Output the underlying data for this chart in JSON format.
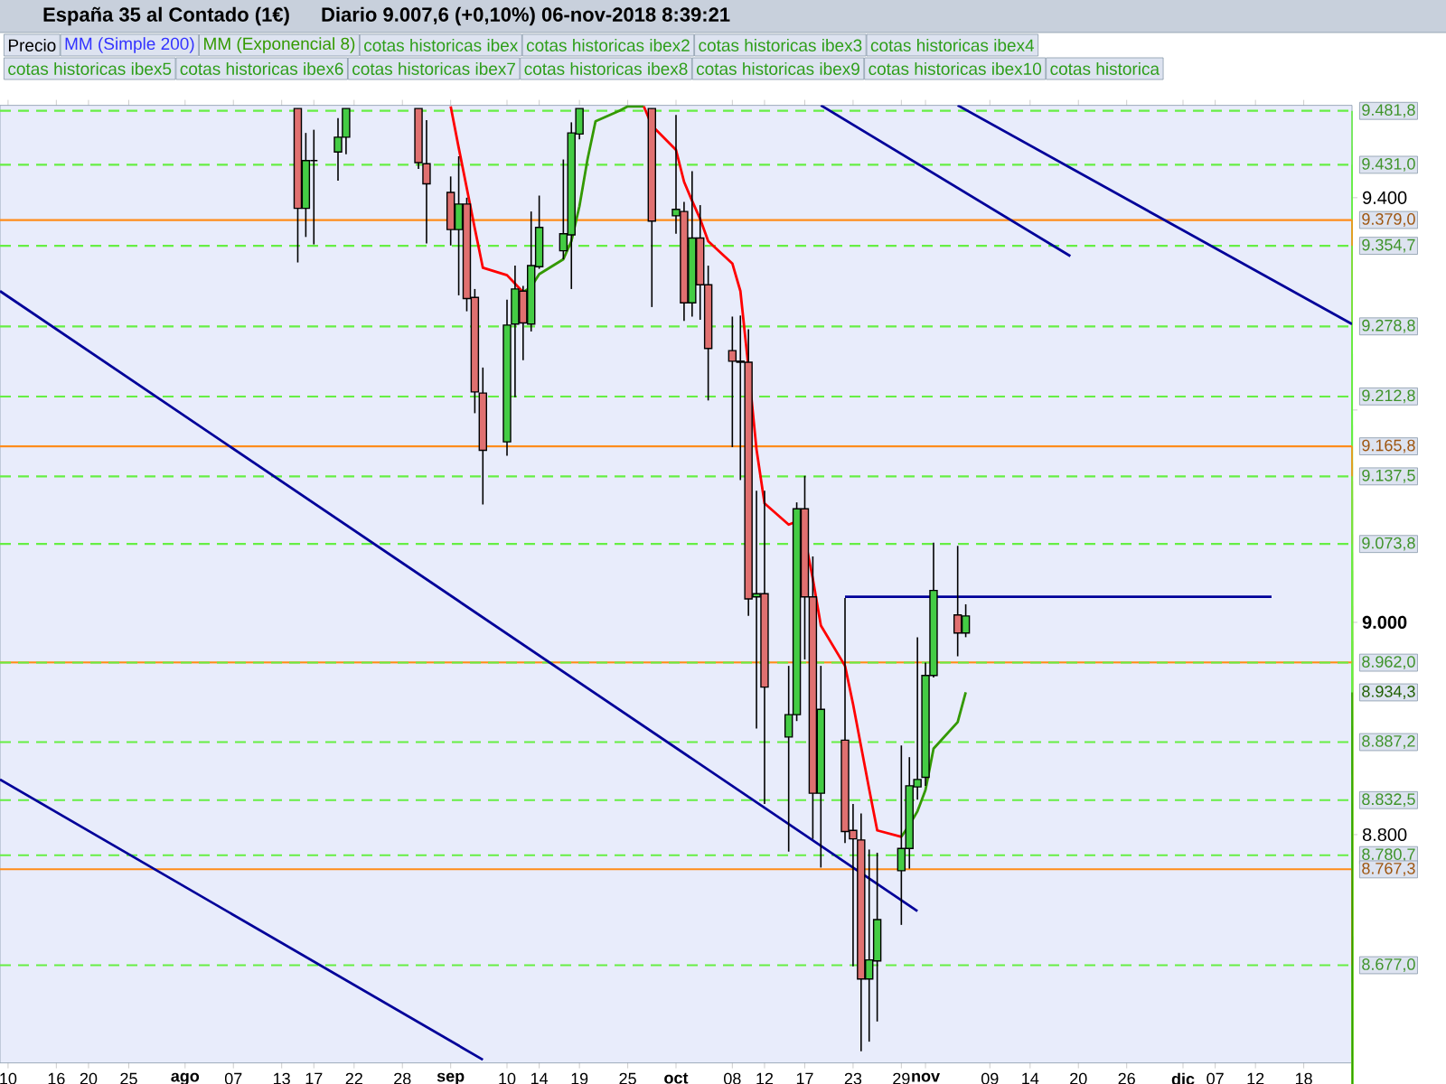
{
  "chart_data": {
    "type": "candlestick",
    "title": "España 35 al Contado (1€)",
    "subtitle": "Diario   9.007,6 (+0,10%)   06-nov-2018 8:39:21",
    "x": [
      "2018-08-15",
      "2018-08-16",
      "2018-08-17",
      "2018-08-20",
      "2018-08-21",
      "2018-08-30",
      "2018-08-31",
      "2018-09-03",
      "2018-09-04",
      "2018-09-05",
      "2018-09-06",
      "2018-09-07",
      "2018-09-10",
      "2018-09-11",
      "2018-09-12",
      "2018-09-13",
      "2018-09-14",
      "2018-09-17",
      "2018-09-18",
      "2018-09-19",
      "2018-09-28",
      "2018-10-01",
      "2018-10-02",
      "2018-10-03",
      "2018-10-04",
      "2018-10-05",
      "2018-10-08",
      "2018-10-09",
      "2018-10-10",
      "2018-10-11",
      "2018-10-12",
      "2018-10-15",
      "2018-10-16",
      "2018-10-17",
      "2018-10-18",
      "2018-10-19",
      "2018-10-22",
      "2018-10-23",
      "2018-10-24",
      "2018-10-25",
      "2018-10-26",
      "2018-10-29",
      "2018-10-30",
      "2018-10-31",
      "2018-11-01",
      "2018-11-02",
      "2018-11-05",
      "2018-11-06"
    ],
    "ohlc": [
      [
        9484,
        9484,
        9339,
        9390
      ],
      [
        9390,
        9461,
        9363,
        9435
      ],
      [
        9435,
        9464,
        9356,
        9435
      ],
      [
        9443,
        9475,
        9416,
        9457
      ],
      [
        9457,
        9484,
        9441,
        9484
      ],
      [
        9484,
        9484,
        9427,
        9433
      ],
      [
        9432,
        9473,
        9357,
        9413
      ],
      [
        9405,
        9420,
        9355,
        9370
      ],
      [
        9370,
        9439,
        9308,
        9394
      ],
      [
        9394,
        9400,
        9293,
        9305
      ],
      [
        9306,
        9314,
        9197,
        9217
      ],
      [
        9216,
        9240,
        9111,
        9162
      ],
      [
        9170,
        9304,
        9157,
        9280
      ],
      [
        9281,
        9336,
        9212,
        9314
      ],
      [
        9312,
        9317,
        9247,
        9282
      ],
      [
        9281,
        9387,
        9274,
        9336
      ],
      [
        9335,
        9402,
        9333,
        9372
      ],
      [
        9350,
        9436,
        9342,
        9366
      ],
      [
        9365,
        9471,
        9314,
        9461
      ],
      [
        9460,
        9484,
        9455,
        9484
      ],
      [
        9484,
        9484,
        9297,
        9378
      ],
      [
        9383,
        9478,
        9366,
        9389
      ],
      [
        9387,
        9396,
        9284,
        9301
      ],
      [
        9301,
        9425,
        9288,
        9362
      ],
      [
        9362,
        9393,
        9285,
        9318
      ],
      [
        9318,
        9336,
        9209,
        9258
      ],
      [
        9256,
        9288,
        9165,
        9246
      ],
      [
        9246,
        9289,
        9134,
        9245
      ],
      [
        9245,
        9276,
        9006,
        9022
      ],
      [
        9024,
        9124,
        8900,
        9027
      ],
      [
        9027,
        9124,
        8829,
        8939
      ],
      [
        8892,
        8959,
        8784,
        8913
      ],
      [
        8913,
        9113,
        8907,
        9107
      ],
      [
        9107,
        9138,
        8965,
        9024
      ],
      [
        9024,
        9062,
        8796,
        8839
      ],
      [
        8839,
        8959,
        8769,
        8918
      ],
      [
        8889,
        9023,
        8792,
        8803
      ],
      [
        8804,
        8829,
        8676,
        8796
      ],
      [
        8795,
        8820,
        8596,
        8664
      ],
      [
        8664,
        8786,
        8605,
        8682
      ],
      [
        8681,
        8783,
        8624,
        8720
      ],
      [
        8766,
        8884,
        8715,
        8787
      ],
      [
        8787,
        8873,
        8768,
        8846
      ],
      [
        8845,
        8986,
        8833,
        8852
      ],
      [
        8854,
        8962,
        8846,
        8950
      ],
      [
        8950,
        9075,
        8948,
        9030
      ],
      [
        9007,
        9072,
        8968,
        8990
      ],
      [
        8990,
        9017,
        8986,
        9006
      ]
    ],
    "series": [
      {
        "type": "line",
        "color": "#ff0000",
        "x": [
          "2018-09-03",
          "2018-09-04",
          "2018-09-05",
          "2018-09-06",
          "2018-09-07",
          "2018-09-10",
          "2018-09-11",
          "2018-09-12"
        ],
        "values": [
          9486,
          9447,
          9409,
          9371,
          9334,
          9327,
          9319,
          9311
        ]
      },
      {
        "type": "line",
        "color": "#339900",
        "x": [
          "2018-09-12",
          "2018-09-13",
          "2018-09-14",
          "2018-09-17",
          "2018-09-18",
          "2018-09-19",
          "2018-09-20",
          "2018-09-21",
          "2018-09-24",
          "2018-09-25",
          "2018-09-26",
          "2018-09-27"
        ],
        "values": [
          9311,
          9316,
          9328,
          9342,
          9359,
          9392,
          9436,
          9472,
          9482,
          9486,
          9486,
          9486
        ]
      },
      {
        "type": "line",
        "color": "#ff0000",
        "x": [
          "2018-09-27",
          "2018-09-28",
          "2018-10-01",
          "2018-10-02",
          "2018-10-03",
          "2018-10-04",
          "2018-10-05",
          "2018-10-08",
          "2018-10-09",
          "2018-10-10",
          "2018-10-11",
          "2018-10-12",
          "2018-10-15",
          "2018-10-16",
          "2018-10-17",
          "2018-10-18",
          "2018-10-19",
          "2018-10-22",
          "2018-10-23",
          "2018-10-24",
          "2018-10-25",
          "2018-10-26",
          "2018-10-29"
        ],
        "values": [
          9486,
          9468,
          9445,
          9415,
          9397,
          9380,
          9359,
          9338,
          9312,
          9240,
          9163,
          9112,
          9092,
          9095,
          9080,
          9041,
          8997,
          8959,
          8923,
          8883,
          8843,
          8804,
          8798
        ]
      },
      {
        "type": "line",
        "color": "#339900",
        "x": [
          "2018-10-29",
          "2018-10-30",
          "2018-10-31",
          "2018-11-01",
          "2018-11-02",
          "2018-11-05",
          "2018-11-06"
        ],
        "values": [
          8798,
          8809,
          8822,
          8842,
          8881,
          8906,
          8934
        ]
      },
      {
        "type": "line",
        "color": "#000099",
        "x": [
          "2018-07-09",
          "2018-10-31"
        ],
        "values": [
          9312,
          8728
        ]
      },
      {
        "type": "line",
        "color": "#000099",
        "x": [
          "2018-07-09",
          "2018-09-07"
        ],
        "values": [
          8852,
          8588
        ]
      },
      {
        "type": "line",
        "color": "#000099",
        "x": [
          "2018-10-19",
          "2018-11-19"
        ],
        "values": [
          9487,
          9345
        ]
      },
      {
        "type": "line",
        "color": "#000099",
        "x": [
          "2018-11-05",
          "2018-12-24"
        ],
        "values": [
          9487,
          9281
        ]
      },
      {
        "type": "line",
        "color": "#000099",
        "x": [
          "2018-10-22",
          "2018-12-14"
        ],
        "values": [
          9024,
          9024
        ]
      }
    ],
    "xlim": [
      "2018-07-09",
      "2018-12-24"
    ],
    "ylim": [
      8585,
      9487
    ],
    "xticks": [
      {
        "value": "2018-07-10",
        "label": "10"
      },
      {
        "value": "2018-07-16",
        "label": "16"
      },
      {
        "value": "2018-07-20",
        "label": "20"
      },
      {
        "value": "2018-07-25",
        "label": "25"
      },
      {
        "value": "2018-08-01",
        "label": "ago"
      },
      {
        "value": "2018-08-07",
        "label": "07"
      },
      {
        "value": "2018-08-13",
        "label": "13"
      },
      {
        "value": "2018-08-17",
        "label": "17"
      },
      {
        "value": "2018-08-22",
        "label": "22"
      },
      {
        "value": "2018-08-28",
        "label": "28"
      },
      {
        "value": "2018-09-03",
        "label": "sep"
      },
      {
        "value": "2018-09-10",
        "label": "10"
      },
      {
        "value": "2018-09-14",
        "label": "14"
      },
      {
        "value": "2018-09-19",
        "label": "19"
      },
      {
        "value": "2018-09-25",
        "label": "25"
      },
      {
        "value": "2018-10-01",
        "label": "oct"
      },
      {
        "value": "2018-10-08",
        "label": "08"
      },
      {
        "value": "2018-10-12",
        "label": "12"
      },
      {
        "value": "2018-10-17",
        "label": "17"
      },
      {
        "value": "2018-10-23",
        "label": "23"
      },
      {
        "value": "2018-10-29",
        "label": "29"
      },
      {
        "value": "2018-11-01",
        "label": "nov"
      },
      {
        "value": "2018-11-09",
        "label": "09"
      },
      {
        "value": "2018-11-14",
        "label": "14"
      },
      {
        "value": "2018-11-20",
        "label": "20"
      },
      {
        "value": "2018-11-26",
        "label": "26"
      },
      {
        "value": "2018-12-03",
        "label": "dic"
      },
      {
        "value": "2018-12-07",
        "label": "07"
      },
      {
        "value": "2018-12-12",
        "label": "12"
      },
      {
        "value": "2018-12-18",
        "label": "18"
      }
    ],
    "yticks": [
      {
        "value": 9400,
        "label": "9.400"
      },
      {
        "value": 9200,
        "label": null
      },
      {
        "value": 9000,
        "label": "9.000"
      },
      {
        "value": 8800,
        "label": "8.800"
      }
    ],
    "ref_lines": [
      {
        "axis": "y",
        "value": 9481.8,
        "label": "9.481,8",
        "color": "#66ee44",
        "line_style": "dashed"
      },
      {
        "axis": "y",
        "value": 9431.0,
        "label": "9.431,0",
        "color": "#66ee44",
        "line_style": "dashed"
      },
      {
        "axis": "y",
        "value": 9379.0,
        "label": "9.379,0",
        "color": "#ff8c1a",
        "line_style": "solid"
      },
      {
        "axis": "y",
        "value": 9354.7,
        "label": "9.354,7",
        "color": "#66ee44",
        "line_style": "dashed"
      },
      {
        "axis": "y",
        "value": 9278.8,
        "label": "9.278,8",
        "color": "#66ee44",
        "line_style": "dashed"
      },
      {
        "axis": "y",
        "value": 9212.8,
        "label": "9.212,8",
        "color": "#66ee44",
        "line_style": "dashed"
      },
      {
        "axis": "y",
        "value": 9165.8,
        "label": "9.165,8",
        "color": "#ff8c1a",
        "line_style": "solid"
      },
      {
        "axis": "y",
        "value": 9137.5,
        "label": "9.137,5",
        "color": "#66ee44",
        "line_style": "dashed"
      },
      {
        "axis": "y",
        "value": 9073.8,
        "label": "9.073,8",
        "color": "#66ee44",
        "line_style": "dashed"
      },
      {
        "axis": "y",
        "value": 8962.1,
        "color": "#ff8c1a",
        "line_style": "solid"
      },
      {
        "axis": "y",
        "value": 8962.0,
        "label": "8.962,0",
        "color": "#66ee44",
        "line_style": "dashed"
      },
      {
        "axis": "y",
        "value": 8887.2,
        "label": "8.887,2",
        "color": "#66ee44",
        "line_style": "dashed"
      },
      {
        "axis": "y",
        "value": 8832.5,
        "label": "8.832,5",
        "color": "#66ee44",
        "line_style": "dashed"
      },
      {
        "axis": "y",
        "value": 8780.7,
        "label": "8.780,7",
        "color": "#66ee44",
        "line_style": "dashed"
      },
      {
        "axis": "y",
        "value": 8767.3,
        "label": "8.767,3",
        "color": "#ff8c1a",
        "line_style": "solid"
      },
      {
        "axis": "y",
        "value": 8677.0,
        "label": "8.677,0",
        "color": "#66ee44",
        "line_style": "dashed"
      }
    ],
    "annotations": [
      "Precio",
      "MM (Simple 200)",
      "MM (Exponencial 8)",
      "cotas historicas ibex",
      "cotas historicas ibex2",
      "cotas historicas ibex3",
      "cotas historicas ibex4",
      "cotas historicas ibex5",
      "cotas historicas ibex6",
      "cotas historicas ibex7",
      "cotas historicas ibex8",
      "cotas historicas ibex9",
      "cotas historicas ibex10",
      "cotas historica",
      "8.934,3"
    ]
  }
}
